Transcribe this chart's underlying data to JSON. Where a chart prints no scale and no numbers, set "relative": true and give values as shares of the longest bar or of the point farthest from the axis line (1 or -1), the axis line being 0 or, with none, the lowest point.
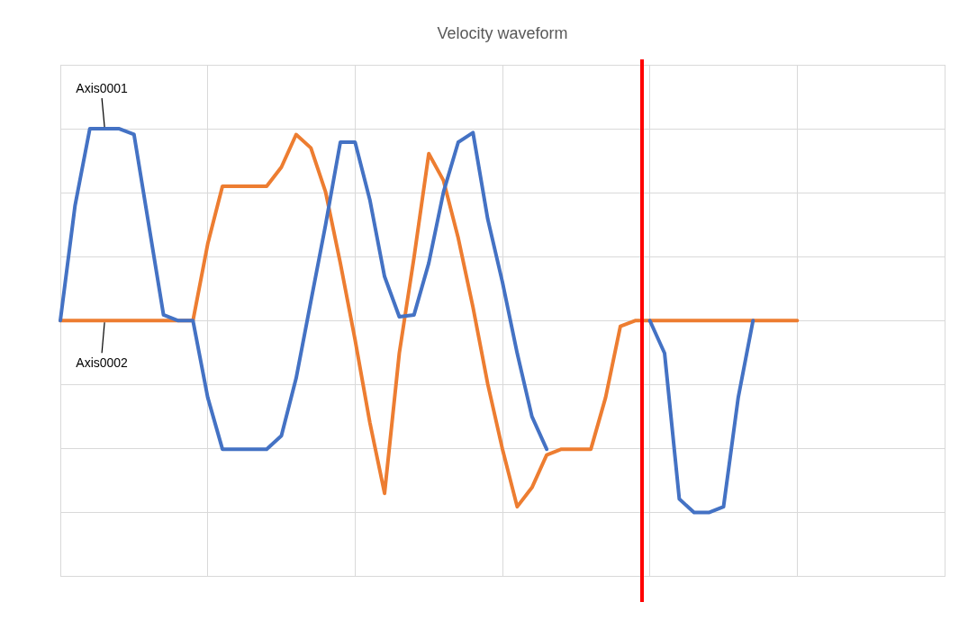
{
  "chart_data": {
    "type": "line",
    "title": "Velocity waveform",
    "relative": true,
    "grid": true,
    "legend": false,
    "marker": "none",
    "line_style": "solid",
    "categories": [
      null,
      null,
      null,
      null,
      null,
      null,
      null,
      null,
      null,
      null,
      null,
      null,
      null,
      null,
      null,
      null,
      null,
      null,
      null,
      null,
      null,
      null,
      null,
      null,
      null,
      null,
      null,
      null,
      null,
      null,
      null,
      null,
      null,
      null,
      null,
      null,
      null,
      null,
      null,
      null,
      null,
      null,
      null,
      null,
      null,
      null,
      null,
      null,
      null,
      null,
      null,
      null,
      null,
      null,
      null,
      null,
      null,
      null,
      null,
      null,
      null
    ],
    "series": [
      {
        "name": "Axis0001",
        "color": "#4472c4",
        "values": [
          0,
          0.6,
          1,
          1,
          1,
          0.97,
          0.5,
          0.03,
          0,
          0,
          -0.4,
          -0.67,
          -0.67,
          -0.67,
          -0.67,
          -0.6,
          -0.3,
          0.1,
          0.5,
          0.93,
          0.93,
          0.63,
          0.23,
          0.02,
          0.03,
          0.3,
          0.67,
          0.93,
          0.98,
          0.53,
          0.2,
          -0.17,
          -0.5,
          -0.67,
          null,
          null,
          null,
          null,
          null,
          null,
          0,
          -0.17,
          -0.93,
          -1,
          -1,
          -0.97,
          -0.4,
          0,
          null,
          null,
          null,
          null,
          null,
          null,
          null,
          null,
          null,
          null,
          null,
          null,
          null
        ]
      },
      {
        "name": "Axis0002",
        "color": "#ed7d31",
        "values": [
          0,
          0,
          0,
          0,
          0,
          0,
          0,
          0,
          0,
          0,
          0.4,
          0.7,
          0.7,
          0.7,
          0.7,
          0.8,
          0.97,
          0.9,
          0.67,
          0.3,
          -0.1,
          -0.53,
          -0.9,
          -0.17,
          0.33,
          0.87,
          0.73,
          0.43,
          0.07,
          -0.33,
          -0.67,
          -0.97,
          -0.87,
          -0.7,
          -0.67,
          -0.67,
          -0.67,
          -0.4,
          -0.03,
          0,
          0,
          0,
          0,
          0,
          0,
          0,
          0,
          0,
          0,
          0,
          0,
          null,
          null,
          null,
          null,
          null,
          null,
          null,
          null,
          null,
          null
        ]
      }
    ]
  }
}
